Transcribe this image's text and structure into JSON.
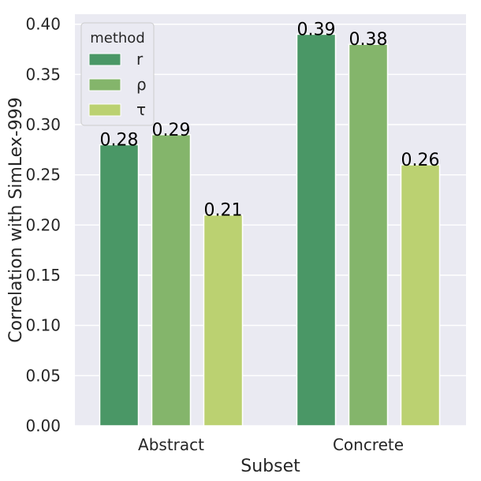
{
  "chart_data": {
    "type": "bar",
    "categories": [
      "Abstract",
      "Concrete"
    ],
    "series": [
      {
        "name": "r",
        "values": [
          0.28,
          0.39
        ],
        "color": "#4a9766"
      },
      {
        "name": "ρ",
        "values": [
          0.29,
          0.38
        ],
        "color": "#84b56b"
      },
      {
        "name": "τ",
        "values": [
          0.21,
          0.26
        ],
        "color": "#bbd171"
      }
    ],
    "bar_labels": [
      [
        "0.28",
        "0.39"
      ],
      [
        "0.29",
        "0.38"
      ],
      [
        "0.21",
        "0.26"
      ]
    ],
    "xlabel": "Subset",
    "ylabel": "Correlation with SimLex-999",
    "ylim": [
      0,
      0.41
    ],
    "yticks": [
      0.0,
      0.05,
      0.1,
      0.15,
      0.2,
      0.25,
      0.3,
      0.35,
      0.4
    ],
    "ytick_labels": [
      "0.00",
      "0.05",
      "0.10",
      "0.15",
      "0.20",
      "0.25",
      "0.30",
      "0.35",
      "0.40"
    ],
    "legend": {
      "title": "method",
      "placement": "top-left"
    },
    "grid": true,
    "background": "#eaeaf2"
  }
}
